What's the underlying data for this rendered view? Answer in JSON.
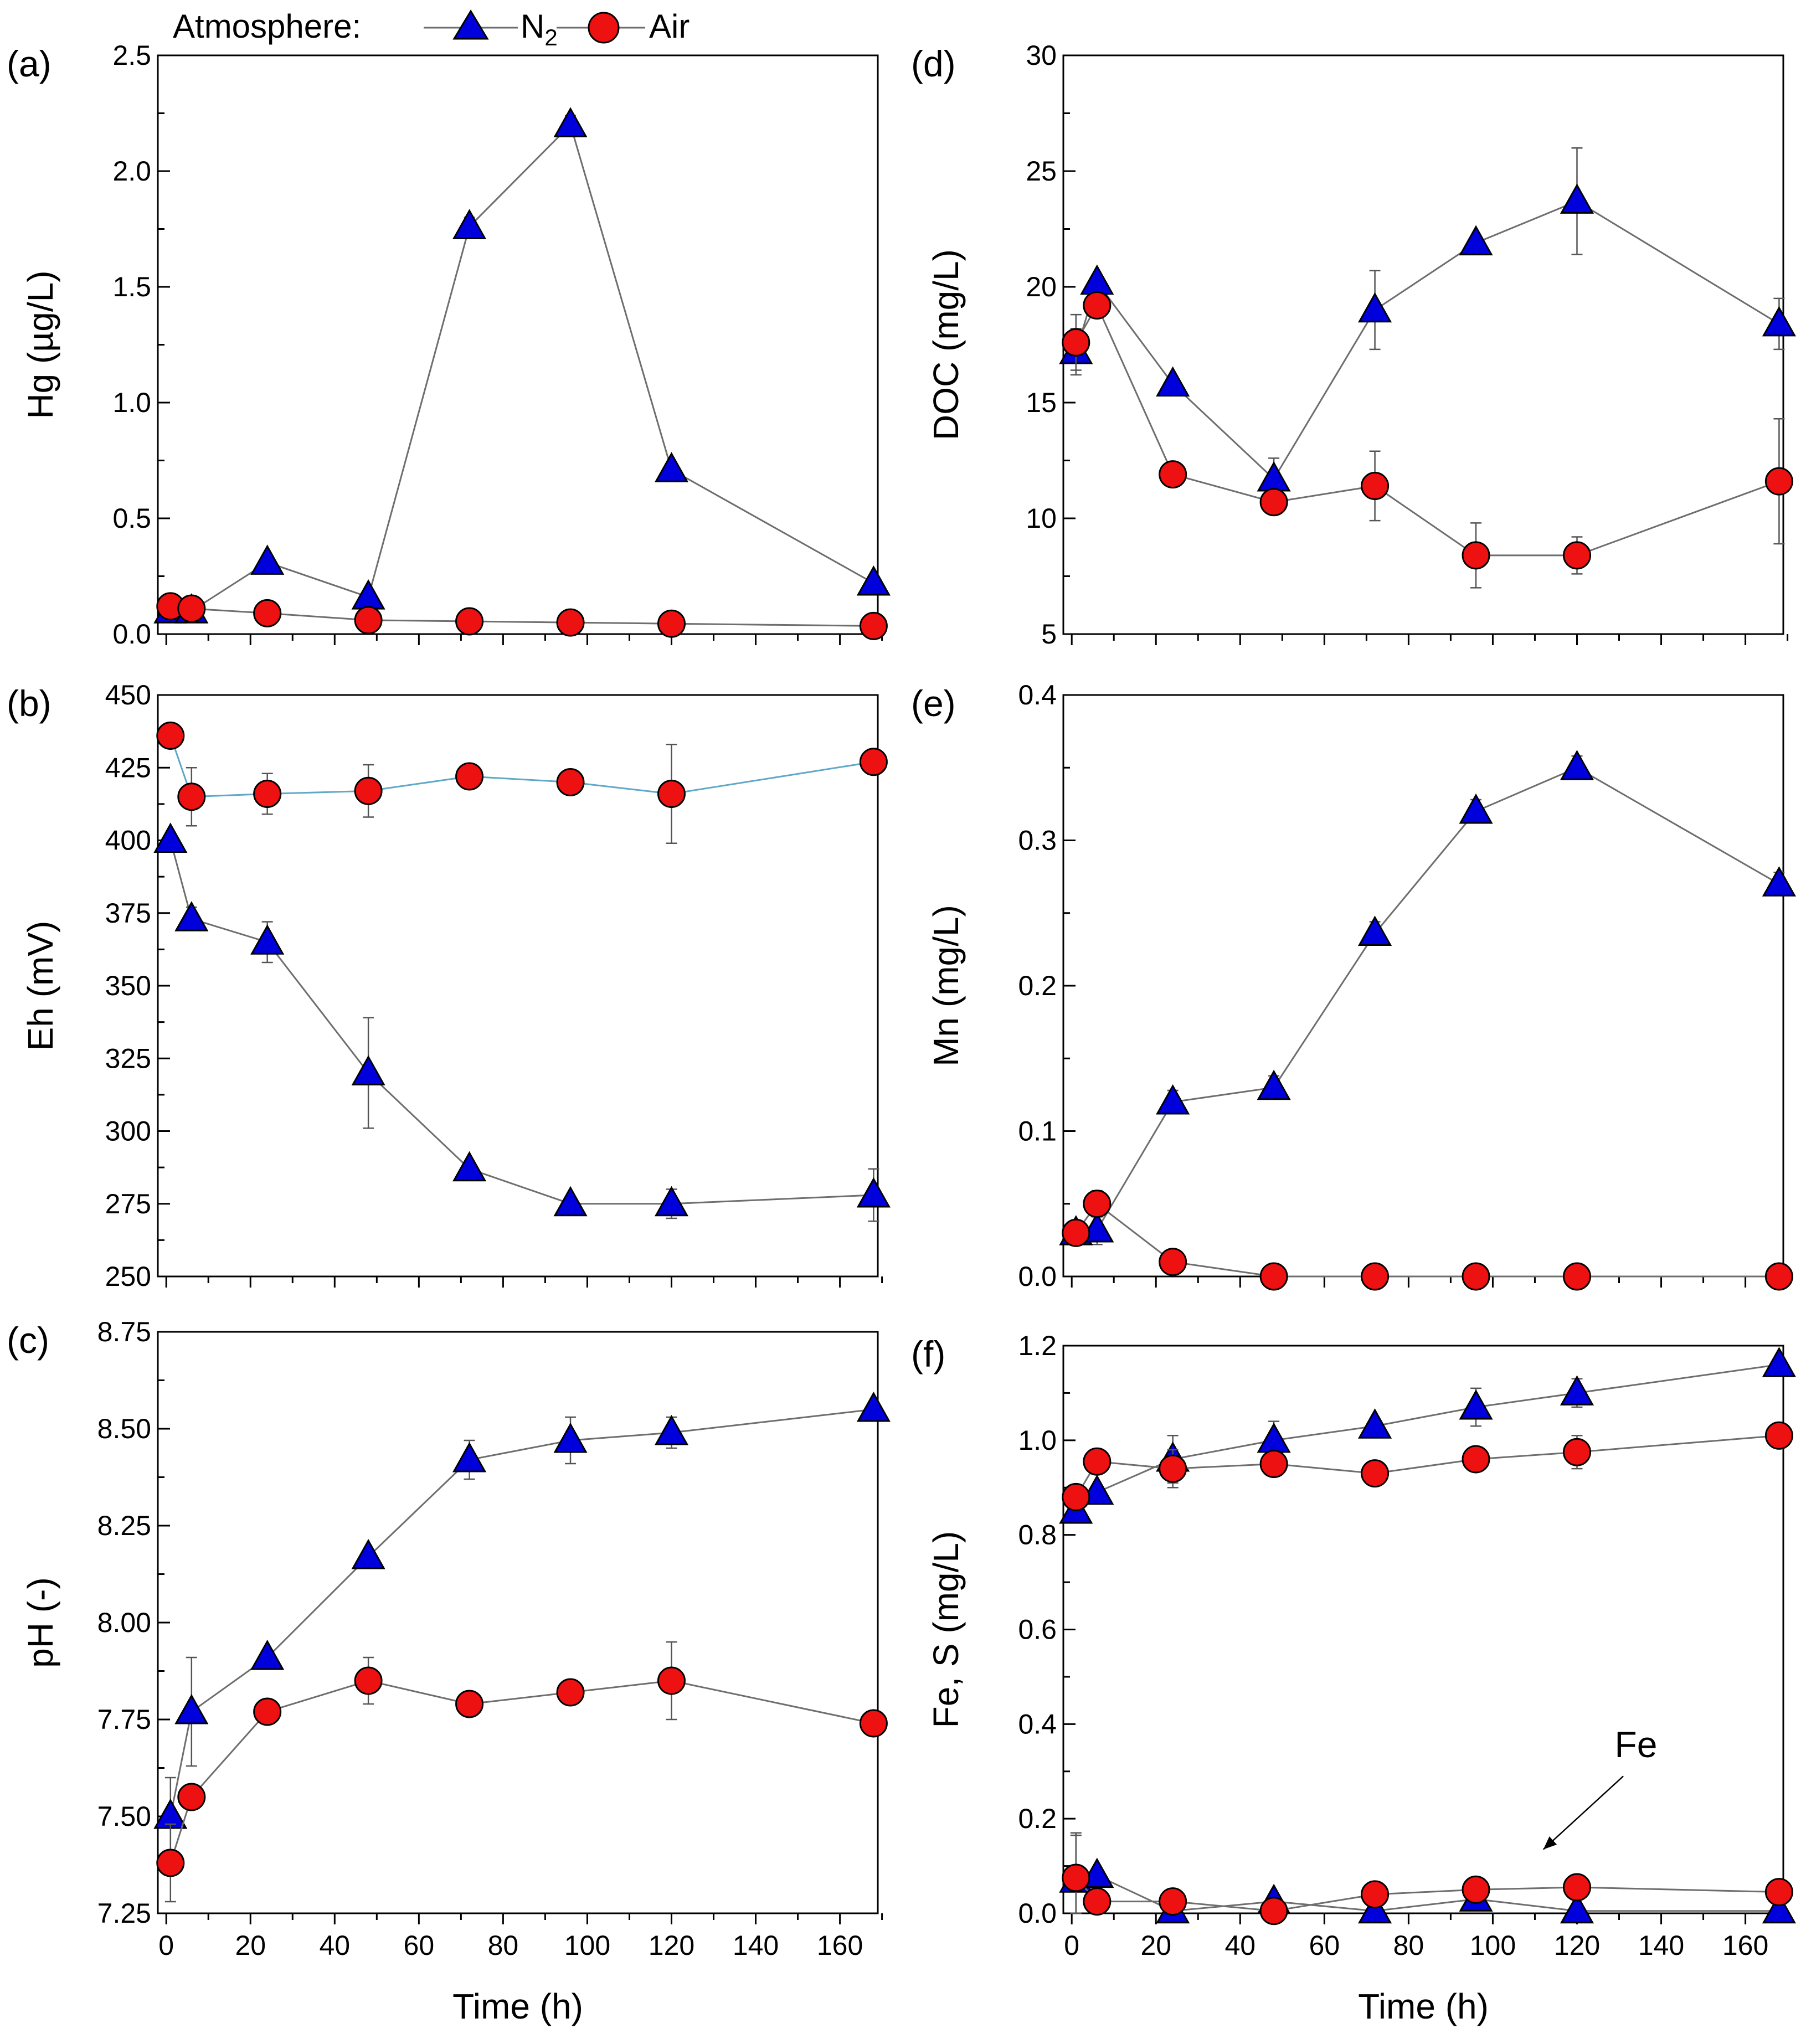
{
  "legend": {
    "title": "Atmosphere:",
    "n2_label": "N",
    "n2_sub": "2",
    "air_label": "Air"
  },
  "colors": {
    "n2": "#0000dd",
    "air": "#ee1111",
    "line": "#6e6e6e",
    "air_eh_line": "#5fa8c8"
  },
  "chart_data": [
    {
      "panel": "(a)",
      "type": "line",
      "xlabel": "",
      "ylabel": "Hg (µg/L)",
      "xlim": [
        -2,
        169
      ],
      "ylim": [
        0,
        2.5
      ],
      "xticks": [
        0,
        20,
        40,
        60,
        80,
        100,
        120,
        140,
        160
      ],
      "yticks": [
        0.0,
        0.5,
        1.0,
        1.5,
        2.0,
        2.5
      ],
      "ydecimals": 1,
      "x": [
        1,
        6,
        24,
        48,
        72,
        96,
        120,
        168
      ],
      "series": [
        {
          "name": "N2",
          "values": [
            0.1,
            0.1,
            0.31,
            0.16,
            1.76,
            2.2,
            0.71,
            0.22
          ],
          "err": [
            0,
            0,
            0.02,
            0.01,
            0.04,
            0.04,
            0.02,
            0.01
          ]
        },
        {
          "name": "Air",
          "values": [
            0.12,
            0.11,
            0.09,
            0.06,
            0.055,
            0.05,
            0.045,
            0.035
          ],
          "err": [
            0,
            0,
            0,
            0,
            0,
            0,
            0,
            0
          ]
        }
      ]
    },
    {
      "panel": "(b)",
      "type": "line",
      "xlabel": "",
      "ylabel": "Eh (mV)",
      "xlim": [
        -2,
        169
      ],
      "ylim": [
        250,
        450
      ],
      "xticks": [
        0,
        20,
        40,
        60,
        80,
        100,
        120,
        140,
        160
      ],
      "yticks": [
        250,
        275,
        300,
        325,
        350,
        375,
        400,
        425,
        450
      ],
      "ydecimals": 0,
      "x": [
        1,
        6,
        24,
        48,
        72,
        96,
        120,
        168
      ],
      "series": [
        {
          "name": "N2",
          "values": [
            400,
            373,
            365,
            320,
            287,
            275,
            275,
            278
          ],
          "err": [
            0,
            4,
            7,
            19,
            0,
            0,
            5,
            9
          ]
        },
        {
          "name": "Air",
          "values": [
            436,
            415,
            416,
            417,
            422,
            420,
            416,
            427
          ],
          "err": [
            0,
            10,
            7,
            9,
            0,
            0,
            17,
            0
          ]
        }
      ]
    },
    {
      "panel": "(c)",
      "type": "line",
      "xlabel": "Time (h)",
      "ylabel": "pH (-)",
      "xlim": [
        -2,
        169
      ],
      "ylim": [
        7.25,
        8.75
      ],
      "xticks": [
        0,
        20,
        40,
        60,
        80,
        100,
        120,
        140,
        160
      ],
      "yticks": [
        7.25,
        7.5,
        7.75,
        8.0,
        8.25,
        8.5,
        8.75
      ],
      "ydecimals": 2,
      "x": [
        1,
        6,
        24,
        48,
        72,
        96,
        120,
        168
      ],
      "series": [
        {
          "name": "N2",
          "values": [
            7.5,
            7.77,
            7.91,
            8.17,
            8.42,
            8.47,
            8.49,
            8.55
          ],
          "err": [
            0.1,
            0.14,
            0,
            0.02,
            0.05,
            0.06,
            0.04,
            0
          ]
        },
        {
          "name": "Air",
          "values": [
            7.38,
            7.55,
            7.77,
            7.85,
            7.79,
            7.82,
            7.85,
            7.74
          ],
          "err": [
            0.1,
            0,
            0.03,
            0.06,
            0,
            0,
            0.1,
            0
          ]
        }
      ]
    },
    {
      "panel": "(d)",
      "type": "line",
      "xlabel": "",
      "ylabel": "DOC (mg/L)",
      "xlim": [
        -2,
        169
      ],
      "ylim": [
        5,
        30
      ],
      "xticks": [
        0,
        20,
        40,
        60,
        80,
        100,
        120,
        140,
        160
      ],
      "yticks": [
        5,
        10,
        15,
        20,
        25,
        30
      ],
      "ydecimals": 0,
      "x": [
        1,
        6,
        24,
        48,
        72,
        96,
        120,
        168
      ],
      "series": [
        {
          "name": "N2",
          "values": [
            17.2,
            20.2,
            15.8,
            11.7,
            19.0,
            21.9,
            23.7,
            18.4
          ],
          "err": [
            1.0,
            0,
            0,
            0.9,
            1.7,
            0,
            2.3,
            1.1
          ]
        },
        {
          "name": "Air",
          "values": [
            17.6,
            19.2,
            11.9,
            10.7,
            11.4,
            8.4,
            8.4,
            11.6
          ],
          "err": [
            1.2,
            0,
            0,
            0.4,
            1.5,
            1.4,
            0.8,
            2.7
          ]
        }
      ]
    },
    {
      "panel": "(e)",
      "type": "line",
      "xlabel": "",
      "ylabel": "Mn (mg/L)",
      "xlim": [
        -2,
        169
      ],
      "ylim": [
        0,
        0.4
      ],
      "xticks": [
        0,
        20,
        40,
        60,
        80,
        100,
        120,
        140,
        160
      ],
      "yticks": [
        0.0,
        0.1,
        0.2,
        0.3,
        0.4
      ],
      "ydecimals": 1,
      "x": [
        1,
        6,
        24,
        48,
        72,
        96,
        120,
        168
      ],
      "series": [
        {
          "name": "N2",
          "values": [
            0.03,
            0.032,
            0.12,
            0.13,
            0.236,
            0.32,
            0.35,
            0.27
          ],
          "err": [
            0,
            0.01,
            0.008,
            0.008,
            0.008,
            0.008,
            0.008,
            0.008
          ]
        },
        {
          "name": "Air",
          "values": [
            0.03,
            0.05,
            0.01,
            0.0,
            0.0,
            0.0,
            0.0,
            0.0
          ],
          "err": [
            0,
            0.009,
            0,
            0.007,
            0.007,
            0.007,
            0.007,
            0.007
          ]
        }
      ]
    },
    {
      "panel": "(f)",
      "type": "line",
      "xlabel": "Time (h)",
      "ylabel": "Fe, S (mg/L)",
      "xlim": [
        -2,
        169
      ],
      "ylim": [
        0,
        1.2
      ],
      "xticks": [
        0,
        20,
        40,
        60,
        80,
        100,
        120,
        140,
        160
      ],
      "yticks": [
        0.0,
        0.2,
        0.4,
        0.6,
        0.8,
        1.0,
        1.2
      ],
      "ydecimals": 1,
      "x": [
        1,
        6,
        24,
        48,
        72,
        96,
        120,
        168
      ],
      "series": [
        {
          "name": "N2 (S)",
          "values": [
            0.85,
            0.89,
            0.96,
            1.0,
            1.03,
            1.07,
            1.1,
            1.16
          ],
          "err": [
            0,
            0,
            0.05,
            0.04,
            0,
            0.04,
            0.03,
            0
          ]
        },
        {
          "name": "Air (S)",
          "values": [
            0.88,
            0.955,
            0.94,
            0.95,
            0.93,
            0.96,
            0.975,
            1.01
          ],
          "err": [
            0,
            0,
            0.04,
            0.02,
            0,
            0,
            0.035,
            0
          ]
        },
        {
          "name": "N2 (Fe)",
          "values": [
            0.07,
            0.08,
            0.005,
            0.025,
            0.005,
            0.03,
            0.005,
            0.005
          ],
          "err": [
            0.1,
            0,
            0,
            0,
            0,
            0,
            0,
            0
          ]
        },
        {
          "name": "Air (Fe)",
          "values": [
            0.075,
            0.025,
            0.025,
            0.005,
            0.04,
            0.05,
            0.055,
            0.045
          ],
          "err": [
            0.09,
            0,
            0,
            0,
            0,
            0,
            0,
            0
          ]
        }
      ],
      "annotation": "Fe"
    }
  ]
}
